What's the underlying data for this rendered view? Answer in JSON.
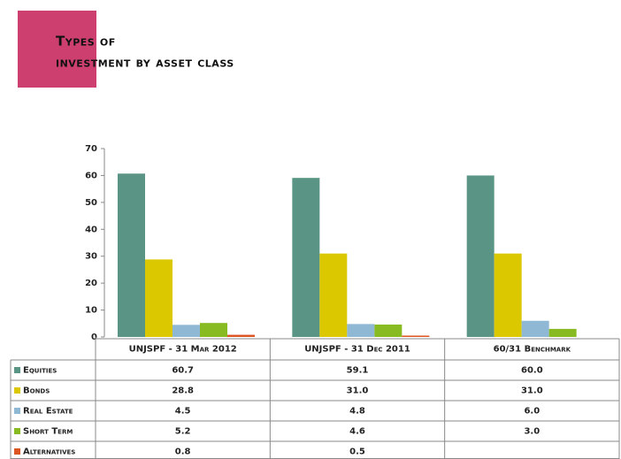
{
  "chart_data": {
    "type": "bar",
    "title": [
      "Types of",
      "investment by asset class"
    ],
    "categories": [
      "UNJSPF - 31 Mar 2012",
      "UNJSPF - 31 Dec 2011",
      "60/31 Benchmark"
    ],
    "series": [
      {
        "name": "Equities",
        "color": "#5a9484",
        "values": [
          60.7,
          59.1,
          60.0
        ],
        "value_labels": [
          "60.7",
          "59.1",
          "60.0"
        ]
      },
      {
        "name": "Bonds",
        "color": "#dcc800",
        "values": [
          28.8,
          31.0,
          31.0
        ],
        "value_labels": [
          "28.8",
          "31.0",
          "31.0"
        ]
      },
      {
        "name": "Real Estate",
        "color": "#8fb8d4",
        "values": [
          4.5,
          4.8,
          6.0
        ],
        "value_labels": [
          "4.5",
          "4.8",
          "6.0"
        ]
      },
      {
        "name": "Short Term",
        "color": "#88bb22",
        "values": [
          5.2,
          4.6,
          3.0
        ],
        "value_labels": [
          "5.2",
          "4.6",
          "3.0"
        ]
      },
      {
        "name": "Alternatives",
        "color": "#dd5522",
        "values": [
          0.8,
          0.5,
          null
        ],
        "value_labels": [
          "0.8",
          "0.5",
          null
        ]
      }
    ],
    "ylim": [
      0,
      70
    ],
    "yticks": [
      0,
      10,
      20,
      30,
      40,
      50,
      60,
      70
    ],
    "grid": false
  }
}
